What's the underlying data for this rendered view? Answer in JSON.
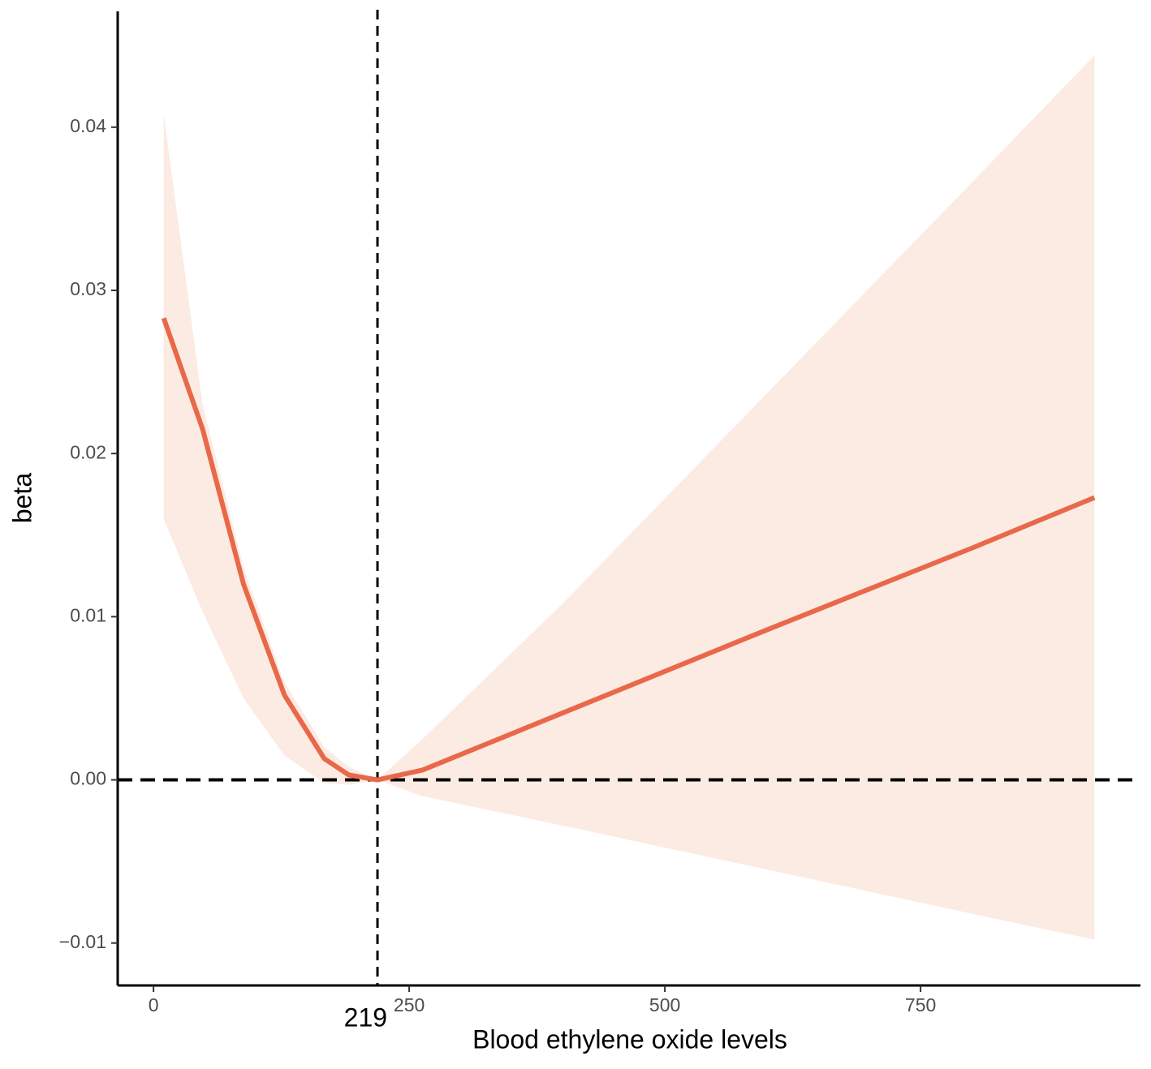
{
  "chart_data": {
    "type": "line",
    "xlabel": "Blood ethylene oxide levels",
    "ylabel": "beta",
    "x": [
      10,
      48,
      88,
      128,
      167,
      191,
      219,
      263,
      400,
      600,
      800,
      920
    ],
    "values": [
      0.0283,
      0.0215,
      0.012,
      0.0052,
      0.0013,
      0.0003,
      0,
      0.0006,
      0.0041,
      0.0092,
      0.0142,
      0.0173
    ],
    "color": "#e8694a",
    "band_upper": [
      0.0408,
      0.023,
      0.013,
      0.006,
      0.002,
      0.0008,
      0,
      0.0025,
      0.0108,
      0.0237,
      0.0366,
      0.0444
    ],
    "band_lower": [
      0.016,
      0.0103,
      0.005,
      0.0015,
      -0.0002,
      -0.0003,
      0,
      -0.001,
      -0.0028,
      -0.0055,
      -0.0082,
      -0.0098
    ],
    "band_color": "#fcebe2",
    "hline": 0,
    "vline": 219,
    "xlim": [
      -35,
      965
    ],
    "ylim": [
      -0.0126,
      0.0471
    ],
    "xticks": [
      0,
      250,
      500,
      750
    ],
    "yticks": [
      {
        "value": -0.01,
        "label": "−0.01"
      },
      {
        "value": 0,
        "label": "0.00"
      },
      0.01,
      0.02,
      0.03,
      0.04
    ]
  }
}
